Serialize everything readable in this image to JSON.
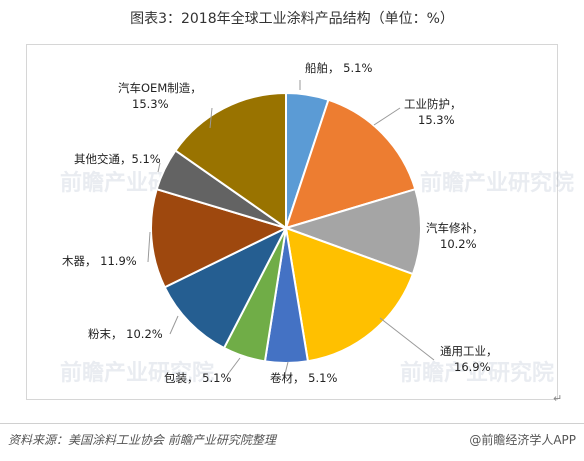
{
  "title": "图表3：2018年全球工业涂料产品结构（单位：%）",
  "watermark": "前瞻产业研究院",
  "return_mark": "↵",
  "source": "资料来源：美国涂料工业协会  前瞻产业研究院整理",
  "brand": "@前瞻经济学人APP",
  "chart_data": {
    "type": "pie",
    "unit": "%",
    "start_angle_deg": 0,
    "direction": "clockwise",
    "slices": [
      {
        "name": "船舶",
        "value": 5.1,
        "label": "船舶，  5.1%",
        "color": "#5b9bd5"
      },
      {
        "name": "工业防护",
        "value": 15.3,
        "label": "工业防护，|15.3%",
        "color": "#ed7d31"
      },
      {
        "name": "汽车修补",
        "value": 10.2,
        "label": "汽车修补，|10.2%",
        "color": "#a5a5a5"
      },
      {
        "name": "通用工业",
        "value": 16.9,
        "label": "通用工业，|16.9%",
        "color": "#ffc000"
      },
      {
        "name": "卷材",
        "value": 5.1,
        "label": "卷材，  5.1%",
        "color": "#4472c4"
      },
      {
        "name": "包装",
        "value": 5.1,
        "label": "包装，  5.1%",
        "color": "#70ad47"
      },
      {
        "name": "粉末",
        "value": 10.2,
        "label": "粉末，  10.2%",
        "color": "#255e91"
      },
      {
        "name": "木器",
        "value": 11.9,
        "label": "木器，  11.9%",
        "color": "#9e480e"
      },
      {
        "name": "其他交通",
        "value": 5.1,
        "label": "其他交通，5.1%",
        "color": "#636363"
      },
      {
        "name": "汽车OEM制造",
        "value": 15.3,
        "label": "汽车OEM制造，|15.3%",
        "color": "#997300"
      }
    ]
  }
}
